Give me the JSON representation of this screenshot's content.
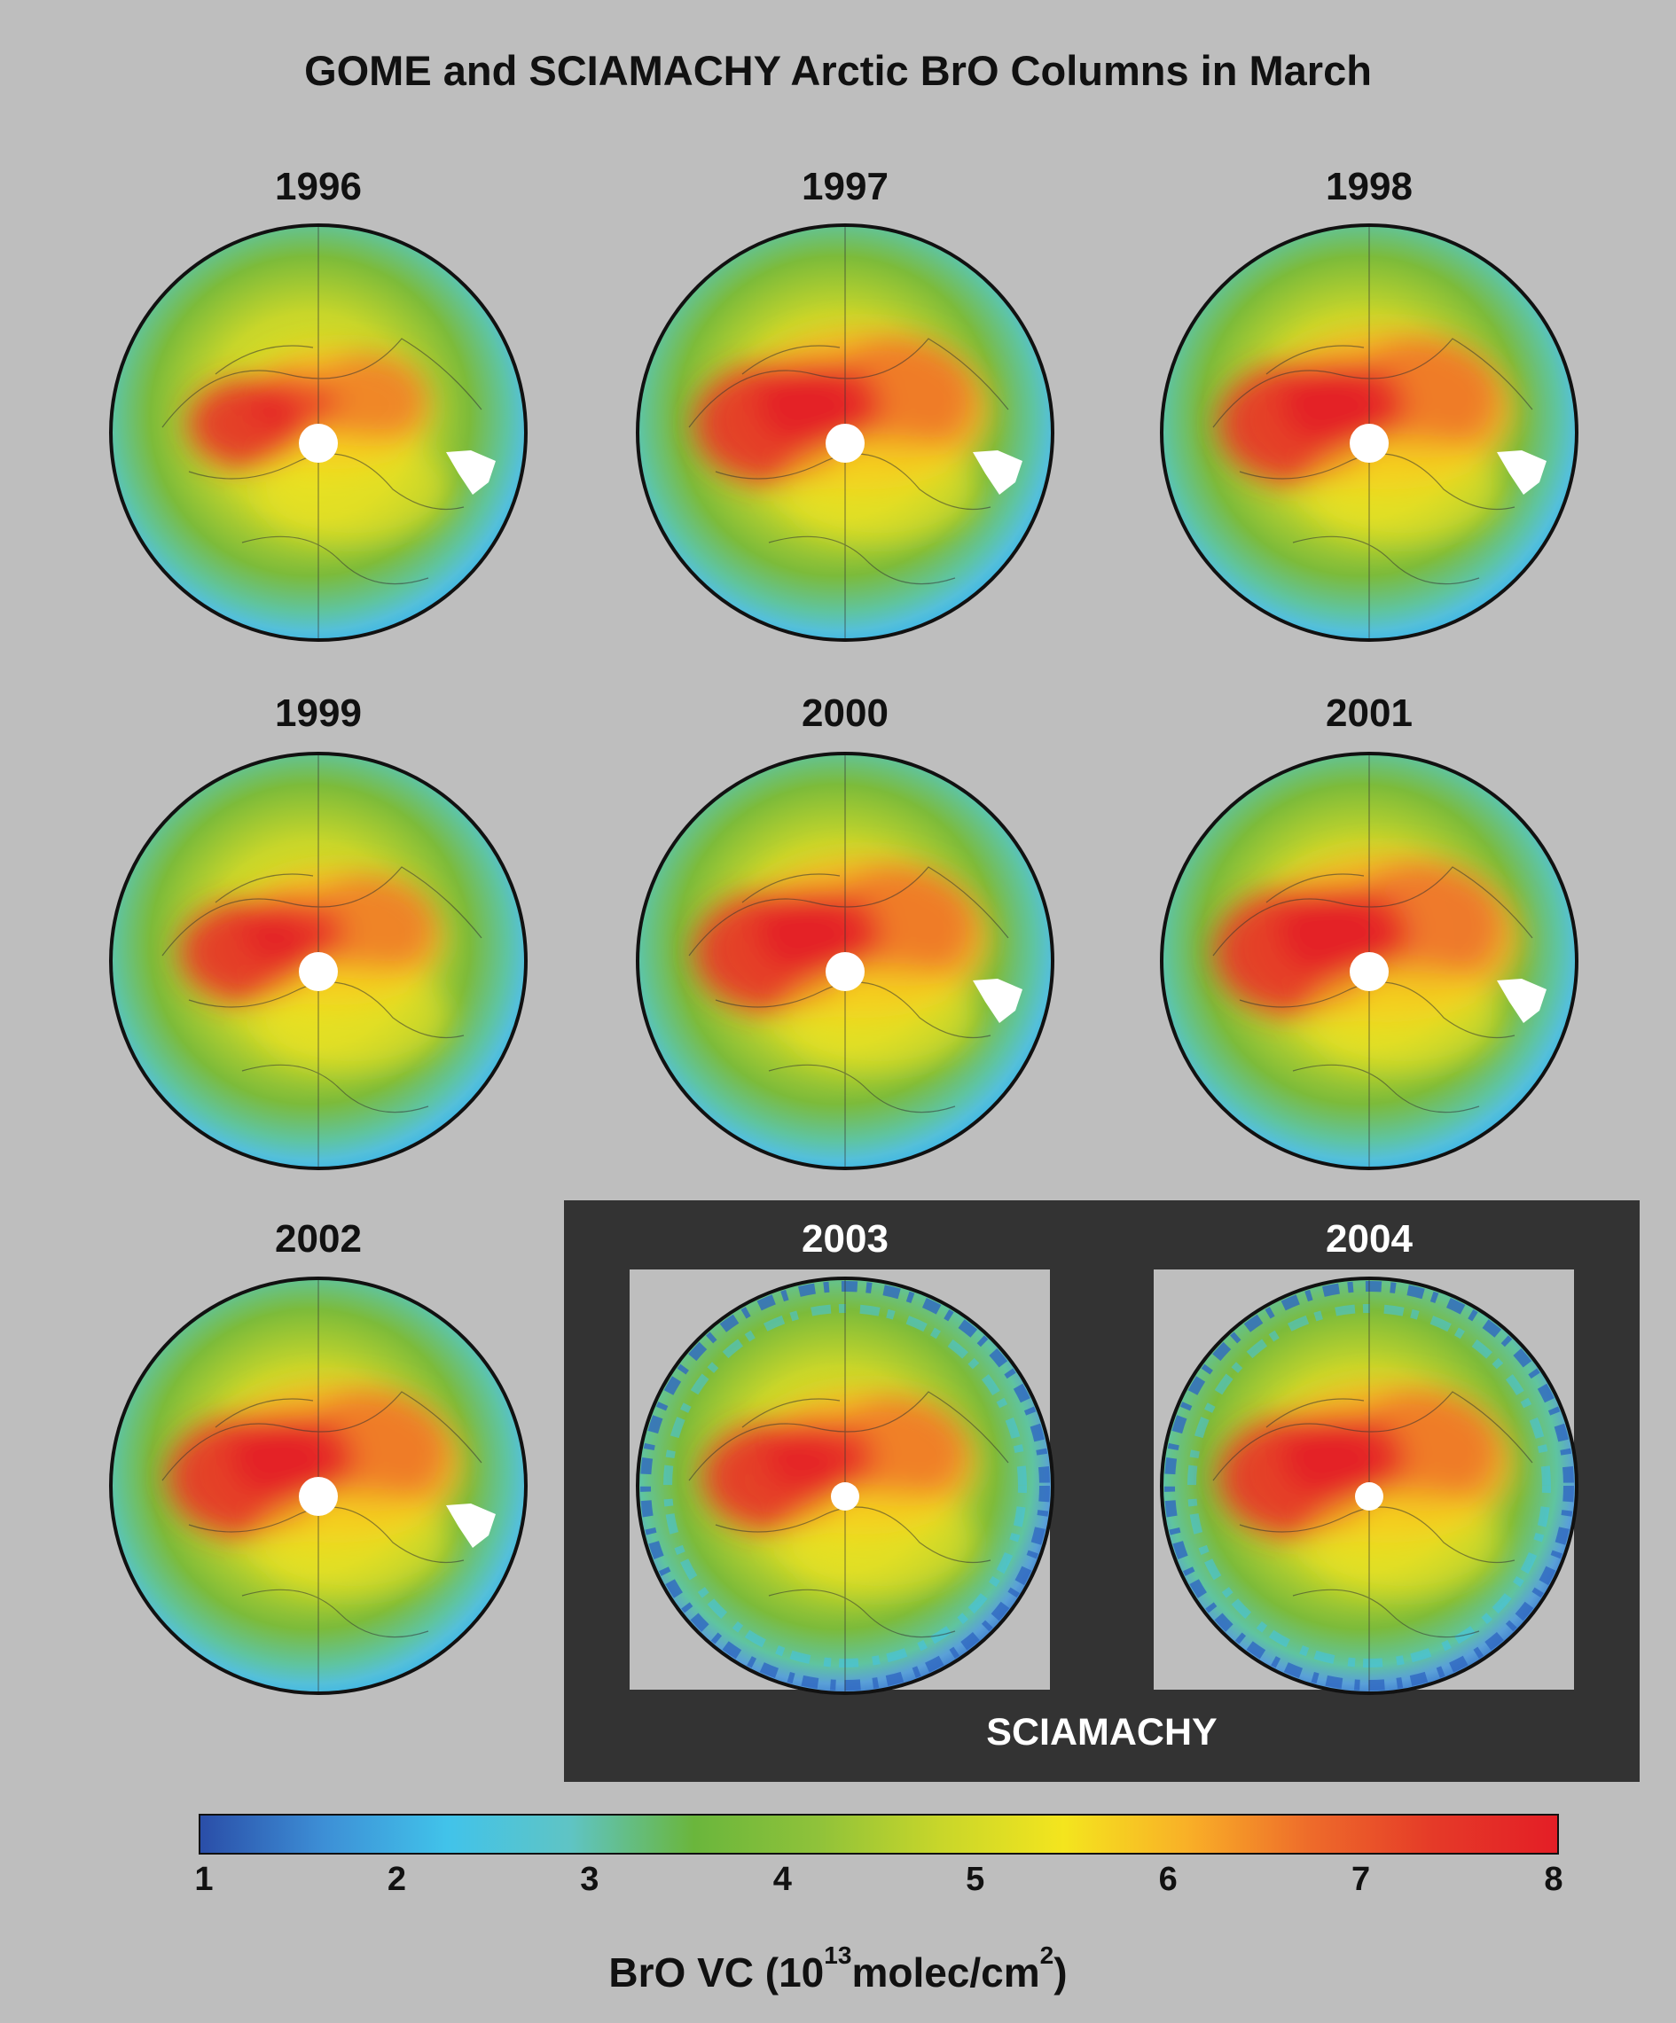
{
  "title": "GOME and SCIAMACHY Arctic BrO Columns in March",
  "panels": [
    {
      "year": "1996",
      "instrument": "GOME",
      "gap": true,
      "hot": 0.7
    },
    {
      "year": "1997",
      "instrument": "GOME",
      "gap": true,
      "hot": 0.95
    },
    {
      "year": "1998",
      "instrument": "GOME",
      "gap": true,
      "hot": 0.95
    },
    {
      "year": "1999",
      "instrument": "GOME",
      "gap": false,
      "hot": 0.8
    },
    {
      "year": "2000",
      "instrument": "GOME",
      "gap": true,
      "hot": 0.95
    },
    {
      "year": "2001",
      "instrument": "GOME",
      "gap": true,
      "hot": 1.0
    },
    {
      "year": "2002",
      "instrument": "GOME",
      "gap": true,
      "hot": 0.95
    },
    {
      "year": "2003",
      "instrument": "SCIAMACHY",
      "gap": false,
      "hot": 0.85
    },
    {
      "year": "2004",
      "instrument": "SCIAMACHY",
      "gap": false,
      "hot": 0.95
    }
  ],
  "sciamachy_label": "SCIAMACHY",
  "colorbar": {
    "ticks": [
      "1",
      "2",
      "3",
      "4",
      "5",
      "6",
      "7",
      "8"
    ],
    "min": 1,
    "max": 8,
    "colors": [
      "#2a4ea8",
      "#3d8fd6",
      "#41c3ea",
      "#5fc4c4",
      "#6ab63c",
      "#8fc23a",
      "#c8d62a",
      "#f4e51e",
      "#f9b027",
      "#ee6b2a",
      "#e53a28",
      "#e41e26"
    ],
    "label_prefix": "BrO VC (10",
    "label_exponent": "13",
    "label_middle": "molec/cm",
    "label_sup2": "2",
    "label_suffix": ")"
  }
}
